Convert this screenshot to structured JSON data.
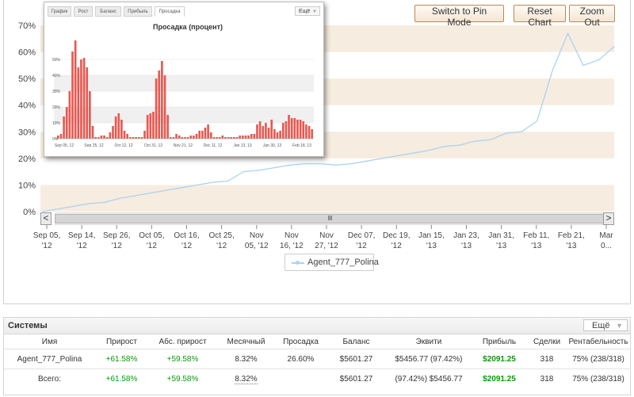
{
  "buttons": {
    "pin_mode": "Switch to Pin Mode",
    "reset_chart": "Reset Chart",
    "zoom_out": "Zoom Out"
  },
  "chart_data": [
    {
      "type": "line",
      "title": "",
      "series": [
        {
          "name": "Agent_777_Polina",
          "color": "#a9d3f0",
          "values": [
            0,
            1,
            2,
            3,
            3.5,
            5,
            6,
            7,
            8,
            9,
            10,
            11,
            11.5,
            15,
            15.5,
            16.5,
            17.5,
            18,
            18,
            17.5,
            18,
            19,
            20,
            21,
            22,
            23,
            24.5,
            25,
            26.5,
            27,
            29.5,
            30,
            34,
            53,
            67,
            55,
            57,
            62
          ]
        }
      ],
      "y_ticks": [
        "0%",
        "10%",
        "20%",
        "30%",
        "40%",
        "50%",
        "60%",
        "70%"
      ],
      "ylim": [
        0,
        70
      ],
      "x_ticks": [
        {
          "l1": "Sep 05,",
          "l2": "'12"
        },
        {
          "l1": "Sep 14,",
          "l2": "'12"
        },
        {
          "l1": "Sep 26,",
          "l2": "'12"
        },
        {
          "l1": "Oct 05,",
          "l2": "'12"
        },
        {
          "l1": "Oct 16,",
          "l2": "'12"
        },
        {
          "l1": "Oct 25,",
          "l2": "'12"
        },
        {
          "l1": "Nov",
          "l2": "05, '12"
        },
        {
          "l1": "Nov",
          "l2": "16, '12"
        },
        {
          "l1": "Nov",
          "l2": "27, '12"
        },
        {
          "l1": "Dec 07,",
          "l2": "'12"
        },
        {
          "l1": "Dec 19,",
          "l2": "'12"
        },
        {
          "l1": "Jan 15,",
          "l2": "'13"
        },
        {
          "l1": "Jan 23,",
          "l2": "'13"
        },
        {
          "l1": "Jan 31,",
          "l2": "'13"
        },
        {
          "l1": "Feb 11,",
          "l2": "'13"
        },
        {
          "l1": "Feb 21,",
          "l2": "'13"
        },
        {
          "l1": "Mar",
          "l2": "0..."
        }
      ],
      "legend": "Agent_777_Polina",
      "band_color": "#f7ece0"
    },
    {
      "type": "bar",
      "title": "Просадка (процент)",
      "values": [
        2,
        3,
        14,
        20,
        30,
        55,
        62,
        45,
        50,
        51,
        45,
        30,
        8,
        1,
        1,
        2,
        2,
        1,
        4,
        8,
        14,
        16,
        12,
        5,
        3,
        1,
        1,
        1,
        1,
        1,
        5,
        15,
        16,
        17,
        38,
        43,
        49,
        40,
        15,
        1,
        1,
        3,
        2,
        1,
        1,
        1,
        2,
        2,
        3,
        5,
        5,
        7,
        9,
        4,
        1,
        1,
        1,
        2,
        1,
        1,
        1,
        1,
        1,
        2,
        2,
        2,
        2,
        3,
        3,
        9,
        11,
        8,
        10,
        7,
        12,
        6,
        4,
        5,
        10,
        11,
        15,
        13,
        13,
        12,
        12,
        11,
        9,
        8,
        6
      ],
      "y_ticks": [
        "0%",
        "10%",
        "20%",
        "30%",
        "40%",
        "50%"
      ],
      "ylim": [
        0,
        65
      ],
      "x_ticks": [
        "Sep 05, 12",
        "Sep 25, 12",
        "Oct 12, 12",
        "Oct 31, 12",
        "Nov 21, 12",
        "Dec 11, 12",
        "Jan 13, 13",
        "Jan 30, 13",
        "Feb 18, 13"
      ],
      "color": "#e9574f"
    }
  ],
  "inset": {
    "tabs": [
      "График",
      "Рост",
      "Баланс",
      "Прибыль",
      "Просадка"
    ],
    "active_tab": "Просадка",
    "more": "Ещё"
  },
  "scrollbar": {
    "left": "<",
    "right": ">",
    "grip": "IIII"
  },
  "systems": {
    "title": "Системы",
    "more": "Ещё",
    "headers": [
      "Имя",
      "Прирост",
      "Абс. прирост",
      "Месячный",
      "Просадка",
      "Баланс",
      "Эквити",
      "Прибыль",
      "Сделки",
      "Рентабельность"
    ],
    "rows": [
      {
        "name": "Agent_777_Polina",
        "growth": "+61.58%",
        "abs_growth": "+59.58%",
        "monthly": "8.32%",
        "drawdown": "26.60%",
        "balance": "$5601.27",
        "equity": "$5456.77 (97.42%)",
        "profit": "$2091.25",
        "trades": "318",
        "profitability": "75% (238/318)"
      }
    ],
    "total": {
      "name": "Всего:",
      "growth": "+61.58%",
      "abs_growth": "+59.58%",
      "monthly": "8.32%",
      "drawdown": "",
      "balance": "$5601.27",
      "equity": "(97.42%) $5456.77",
      "profit": "$2091.25",
      "trades": "318",
      "profitability": "75% (238/318)"
    }
  }
}
